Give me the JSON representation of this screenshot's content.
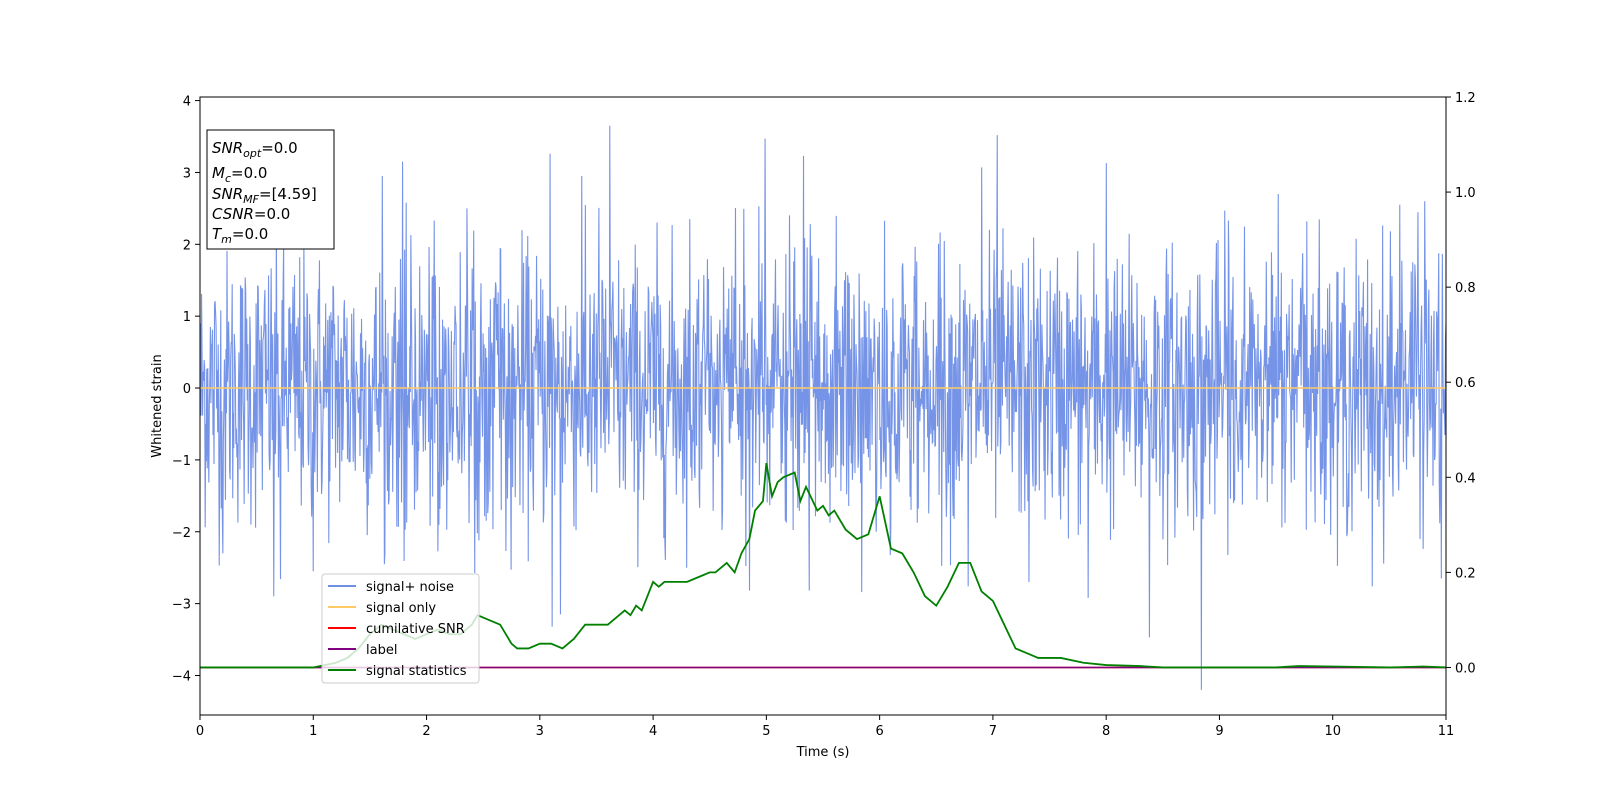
{
  "chart_data": {
    "type": "line",
    "xlabel": "Time (s)",
    "ylabel": "Whitened strain",
    "xlim": [
      0,
      11
    ],
    "ylim": [
      -4.55,
      4.05
    ],
    "y2lim": [
      -0.1,
      1.2
    ],
    "xticks": [
      0,
      1,
      2,
      3,
      4,
      5,
      6,
      7,
      8,
      9,
      10,
      11
    ],
    "yticks": [
      -4,
      -3,
      -2,
      -1,
      0,
      1,
      2,
      3,
      4
    ],
    "y2ticks": [
      0.0,
      0.2,
      0.4,
      0.6,
      0.8,
      1.0,
      1.2
    ],
    "grid": false,
    "legend_position": "lower-left",
    "series": [
      {
        "name": "signal+ noise",
        "axis": "left",
        "color": "#6f8ee6",
        "kind": "noise",
        "envelope": {
          "typical_high": 1.6,
          "typical_low": -1.6,
          "max": 3.65,
          "min": -4.2
        },
        "spikes": [
          {
            "x": 3.62,
            "y": 3.65
          },
          {
            "x": 4.99,
            "y": 3.47
          },
          {
            "x": 7.04,
            "y": 3.52
          },
          {
            "x": 3.09,
            "y": 3.26
          },
          {
            "x": 5.33,
            "y": 3.23
          },
          {
            "x": 1.79,
            "y": 3.15
          },
          {
            "x": 8.0,
            "y": 3.13
          },
          {
            "x": 6.9,
            "y": 3.07
          },
          {
            "x": 1.61,
            "y": 2.95
          },
          {
            "x": 3.37,
            "y": 2.95
          },
          {
            "x": 10.81,
            "y": 2.6
          },
          {
            "x": 10.59,
            "y": 2.55
          },
          {
            "x": 9.52,
            "y": 2.7
          },
          {
            "x": 8.84,
            "y": -4.2
          },
          {
            "x": 3.11,
            "y": -3.32
          },
          {
            "x": 3.18,
            "y": -3.15
          },
          {
            "x": 8.38,
            "y": -3.47
          },
          {
            "x": 0.65,
            "y": -2.9
          },
          {
            "x": 7.84,
            "y": -2.92
          },
          {
            "x": 4.85,
            "y": -2.82
          },
          {
            "x": 5.38,
            "y": -2.82
          },
          {
            "x": 6.78,
            "y": -2.76
          },
          {
            "x": 10.35,
            "y": -2.76
          },
          {
            "x": 0.71,
            "y": -2.66
          },
          {
            "x": 5.84,
            "y": -2.84
          },
          {
            "x": 0.2,
            "y": -2.3
          },
          {
            "x": 7.32,
            "y": -2.7
          },
          {
            "x": 10.96,
            "y": -2.65
          },
          {
            "x": 1.0,
            "y": -2.55
          }
        ]
      },
      {
        "name": "signal only",
        "axis": "left",
        "color": "#ffc966",
        "x": [
          0,
          11
        ],
        "y": [
          0,
          0
        ]
      },
      {
        "name": "cumilative SNR",
        "axis": "right",
        "color": "#ff0000",
        "x": [
          0,
          11
        ],
        "y": [
          0,
          0
        ]
      },
      {
        "name": "label",
        "axis": "right",
        "color": "#800080",
        "x": [
          0,
          11
        ],
        "y": [
          0,
          0
        ]
      },
      {
        "name": "signal statistics",
        "axis": "right",
        "color": "#008000",
        "x": [
          0.0,
          0.5,
          1.0,
          1.2,
          1.3,
          1.4,
          1.5,
          1.6,
          1.7,
          1.8,
          1.9,
          2.0,
          2.1,
          2.2,
          2.3,
          2.4,
          2.45,
          2.55,
          2.65,
          2.7,
          2.75,
          2.8,
          2.9,
          3.0,
          3.1,
          3.2,
          3.3,
          3.4,
          3.5,
          3.6,
          3.7,
          3.75,
          3.8,
          3.85,
          3.9,
          4.0,
          4.05,
          4.1,
          4.2,
          4.3,
          4.4,
          4.5,
          4.55,
          4.65,
          4.72,
          4.78,
          4.85,
          4.9,
          4.97,
          5.0,
          5.05,
          5.1,
          5.15,
          5.25,
          5.3,
          5.35,
          5.45,
          5.5,
          5.55,
          5.6,
          5.7,
          5.8,
          5.9,
          6.0,
          6.1,
          6.2,
          6.3,
          6.4,
          6.5,
          6.6,
          6.7,
          6.8,
          6.9,
          7.0,
          7.1,
          7.2,
          7.3,
          7.4,
          7.6,
          7.8,
          8.0,
          8.3,
          8.5,
          9.0,
          9.5,
          9.7,
          10.0,
          10.5,
          10.8,
          11.0
        ],
        "y": [
          0.0,
          0.0,
          0.0,
          0.01,
          0.02,
          0.04,
          0.07,
          0.09,
          0.08,
          0.07,
          0.06,
          0.07,
          0.08,
          0.07,
          0.07,
          0.09,
          0.11,
          0.1,
          0.09,
          0.07,
          0.05,
          0.04,
          0.04,
          0.05,
          0.05,
          0.04,
          0.06,
          0.09,
          0.09,
          0.09,
          0.11,
          0.12,
          0.11,
          0.13,
          0.12,
          0.18,
          0.17,
          0.18,
          0.18,
          0.18,
          0.19,
          0.2,
          0.2,
          0.22,
          0.2,
          0.24,
          0.27,
          0.33,
          0.35,
          0.43,
          0.36,
          0.39,
          0.4,
          0.41,
          0.35,
          0.38,
          0.33,
          0.34,
          0.32,
          0.33,
          0.29,
          0.27,
          0.28,
          0.36,
          0.25,
          0.24,
          0.2,
          0.15,
          0.13,
          0.17,
          0.22,
          0.22,
          0.16,
          0.14,
          0.09,
          0.04,
          0.03,
          0.02,
          0.02,
          0.01,
          0.005,
          0.003,
          0.0,
          0.0,
          0.0,
          0.003,
          0.002,
          0.0,
          0.002,
          0.0
        ]
      }
    ],
    "annotation": {
      "lines": [
        {
          "name": "SNR",
          "sub": "opt",
          "value": "=0.0"
        },
        {
          "name": "M",
          "sub": "c",
          "value": "=0.0"
        },
        {
          "name": "SNR",
          "sub": "MF",
          "value": "=[4.59]"
        },
        {
          "name": "CSNR",
          "sub": "",
          "value": "=0.0"
        },
        {
          "name": "T",
          "sub": "m",
          "value": "=0.0"
        }
      ]
    }
  }
}
